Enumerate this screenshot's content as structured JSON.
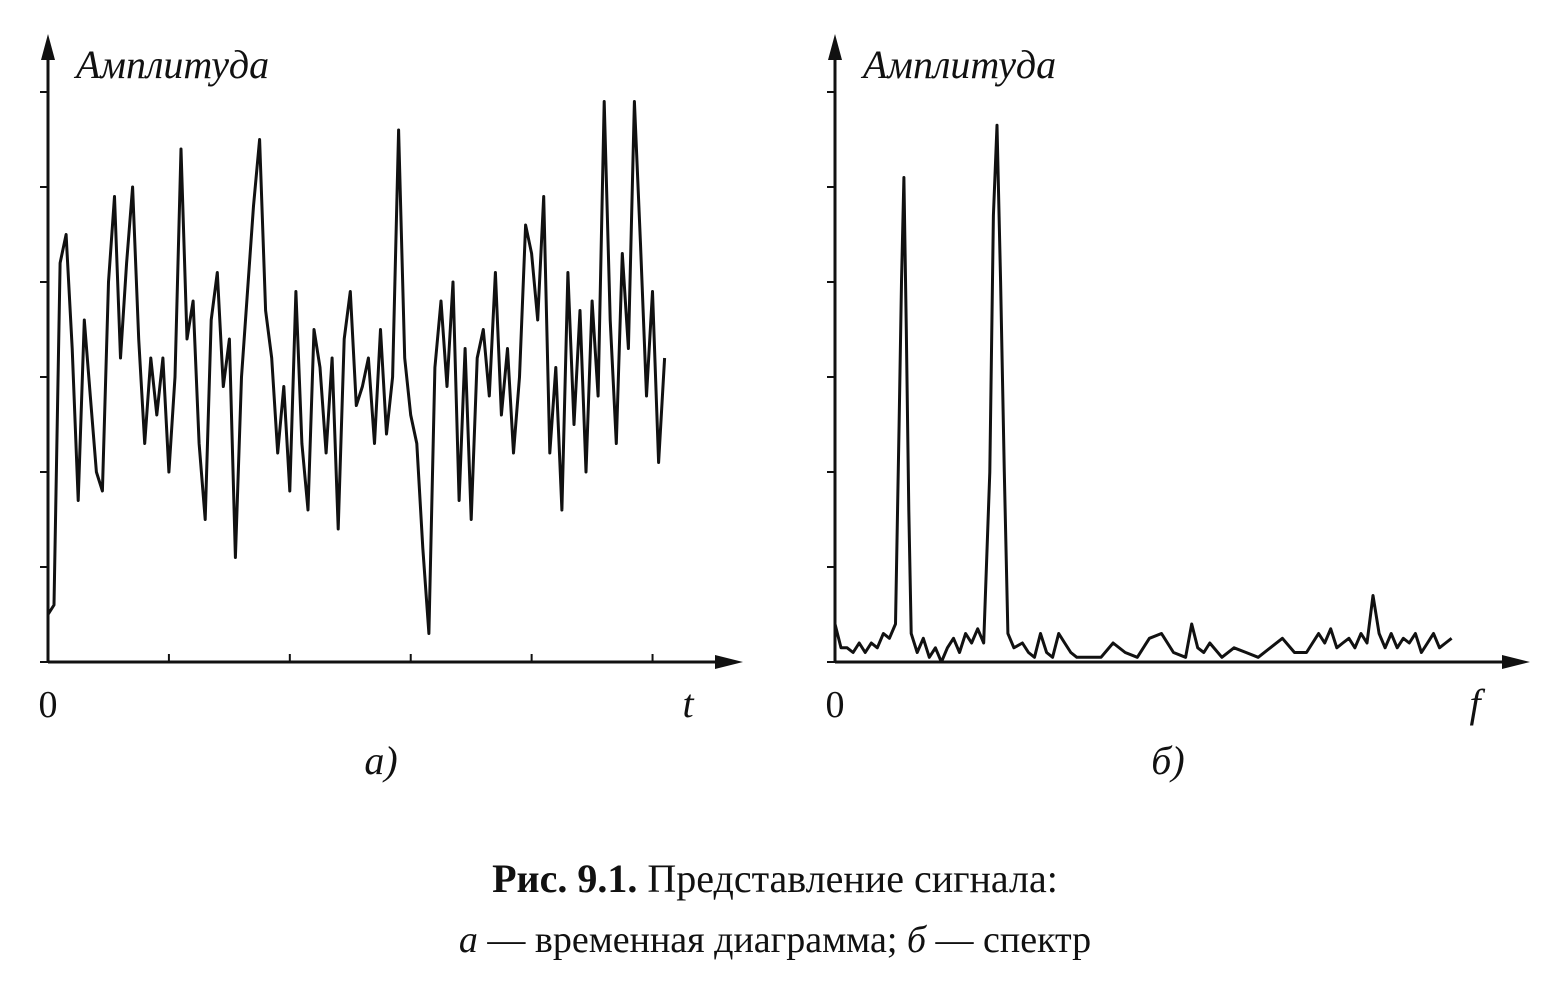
{
  "chart_data": [
    {
      "type": "line",
      "y_label": "Амплитуда",
      "x_label": "t",
      "sub_caption": "а)",
      "color": "#111111",
      "xlim": [
        0,
        5.5
      ],
      "ylim": [
        0,
        6.4
      ],
      "xticks": [
        0,
        1,
        2,
        3,
        4,
        5
      ],
      "yticks": [
        0,
        1,
        2,
        3,
        4,
        5,
        6
      ],
      "x": [
        0,
        0.05,
        0.1,
        0.15,
        0.2,
        0.25,
        0.3,
        0.35,
        0.4,
        0.45,
        0.5,
        0.55,
        0.6,
        0.65,
        0.7,
        0.75,
        0.8,
        0.85,
        0.9,
        0.95,
        1,
        1.05,
        1.1,
        1.15,
        1.2,
        1.25,
        1.3,
        1.35,
        1.4,
        1.45,
        1.5,
        1.55,
        1.6,
        1.65,
        1.7,
        1.75,
        1.8,
        1.85,
        1.9,
        1.95,
        2,
        2.05,
        2.1,
        2.15,
        2.2,
        2.25,
        2.3,
        2.35,
        2.4,
        2.45,
        2.5,
        2.55,
        2.6,
        2.65,
        2.7,
        2.75,
        2.8,
        2.85,
        2.9,
        2.95,
        3,
        3.05,
        3.1,
        3.15,
        3.2,
        3.25,
        3.3,
        3.35,
        3.4,
        3.45,
        3.5,
        3.55,
        3.6,
        3.65,
        3.7,
        3.75,
        3.8,
        3.85,
        3.9,
        3.95,
        4,
        4.05,
        4.1,
        4.15,
        4.2,
        4.25,
        4.3,
        4.35,
        4.4,
        4.45,
        4.5,
        4.55,
        4.6,
        4.65,
        4.7,
        4.75,
        4.8,
        4.85,
        4.9,
        4.95,
        5,
        5.05,
        5.1
      ],
      "values": [
        0.5,
        0.6,
        4.2,
        4.5,
        3.3,
        1.7,
        3.6,
        2.8,
        2.0,
        1.8,
        4.0,
        4.9,
        3.2,
        4.2,
        5.0,
        3.4,
        2.3,
        3.2,
        2.6,
        3.2,
        2.0,
        3.0,
        5.4,
        3.4,
        3.8,
        2.3,
        1.5,
        3.6,
        4.1,
        2.9,
        3.4,
        1.1,
        3.0,
        3.9,
        4.8,
        5.5,
        3.7,
        3.2,
        2.2,
        2.9,
        1.8,
        3.9,
        2.3,
        1.6,
        3.5,
        3.1,
        2.2,
        3.2,
        1.4,
        3.4,
        3.9,
        2.7,
        2.9,
        3.2,
        2.3,
        3.5,
        2.4,
        3.0,
        5.6,
        3.2,
        2.6,
        2.3,
        1.2,
        0.3,
        3.1,
        3.8,
        2.9,
        4.0,
        1.7,
        3.3,
        1.5,
        3.2,
        3.5,
        2.8,
        4.1,
        2.6,
        3.3,
        2.2,
        3.0,
        4.6,
        4.3,
        3.6,
        4.9,
        2.2,
        3.1,
        1.6,
        4.1,
        2.5,
        3.7,
        2.0,
        3.8,
        2.8,
        5.9,
        3.6,
        2.3,
        4.3,
        3.3,
        5.9,
        4.4,
        2.8,
        3.9,
        2.1,
        3.2
      ]
    },
    {
      "type": "line",
      "y_label": "Амплитуда",
      "x_label": "f",
      "sub_caption": "б)",
      "color": "#111111",
      "xlim": [
        0,
        5.5
      ],
      "ylim": [
        0,
        6.4
      ],
      "xticks": [
        0
      ],
      "yticks": [
        0,
        1,
        2,
        3,
        4,
        5,
        6
      ],
      "x": [
        0,
        0.05,
        0.1,
        0.15,
        0.2,
        0.25,
        0.3,
        0.35,
        0.4,
        0.45,
        0.5,
        0.53,
        0.55,
        0.57,
        0.59,
        0.61,
        0.63,
        0.68,
        0.73,
        0.78,
        0.83,
        0.88,
        0.93,
        0.98,
        1.03,
        1.08,
        1.13,
        1.18,
        1.23,
        1.28,
        1.31,
        1.34,
        1.37,
        1.4,
        1.43,
        1.48,
        1.55,
        1.6,
        1.65,
        1.7,
        1.75,
        1.8,
        1.85,
        1.9,
        1.95,
        2,
        2.1,
        2.2,
        2.3,
        2.4,
        2.5,
        2.6,
        2.7,
        2.8,
        2.9,
        2.95,
        3,
        3.05,
        3.1,
        3.2,
        3.3,
        3.4,
        3.5,
        3.6,
        3.7,
        3.8,
        3.9,
        4,
        4.05,
        4.1,
        4.15,
        4.2,
        4.25,
        4.3,
        4.35,
        4.4,
        4.45,
        4.5,
        4.55,
        4.6,
        4.65,
        4.7,
        4.75,
        4.8,
        4.85,
        4.9,
        4.95,
        5,
        5.05,
        5.1
      ],
      "values": [
        0.4,
        0.15,
        0.15,
        0.1,
        0.2,
        0.1,
        0.2,
        0.15,
        0.3,
        0.25,
        0.4,
        2.5,
        4.0,
        5.1,
        3.5,
        1.6,
        0.3,
        0.1,
        0.25,
        0.05,
        0.15,
        0.0,
        0.15,
        0.25,
        0.1,
        0.3,
        0.2,
        0.35,
        0.2,
        2.0,
        4.7,
        5.65,
        4.0,
        2.0,
        0.3,
        0.15,
        0.2,
        0.1,
        0.05,
        0.3,
        0.1,
        0.05,
        0.3,
        0.2,
        0.1,
        0.05,
        0.05,
        0.05,
        0.2,
        0.1,
        0.05,
        0.25,
        0.3,
        0.1,
        0.05,
        0.4,
        0.15,
        0.1,
        0.2,
        0.05,
        0.15,
        0.1,
        0.05,
        0.15,
        0.25,
        0.1,
        0.1,
        0.3,
        0.2,
        0.35,
        0.15,
        0.2,
        0.25,
        0.15,
        0.3,
        0.2,
        0.7,
        0.3,
        0.15,
        0.3,
        0.15,
        0.25,
        0.2,
        0.3,
        0.1,
        0.2,
        0.3,
        0.15,
        0.2,
        0.25
      ]
    }
  ],
  "figure_caption": {
    "label": "Рис. 9.1.",
    "title": " Представление сигнала:",
    "line2": [
      "а",
      " — временная диаграмма; ",
      "б",
      " — спектр"
    ]
  }
}
